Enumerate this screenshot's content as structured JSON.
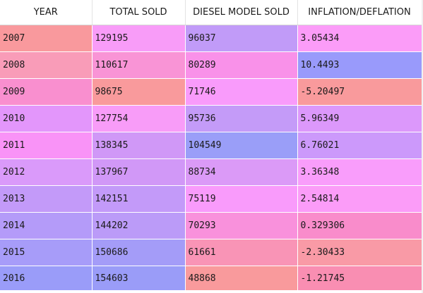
{
  "table": {
    "columns": [
      "YEAR",
      "TOTAL SOLD",
      "DIESEL MODEL SOLD",
      "INFLATION/DEFLATION"
    ],
    "rows": [
      {
        "cells": [
          "2007",
          "129195",
          "96037",
          "3.05434"
        ],
        "colors": [
          "#f9999d",
          "#f89cf8",
          "#c19bf8",
          "#fb9cf8"
        ]
      },
      {
        "cells": [
          "2008",
          "110617",
          "80289",
          "10.4493"
        ],
        "colors": [
          "#f99cb8",
          "#f994d6",
          "#f991e9",
          "#999afb"
        ]
      },
      {
        "cells": [
          "2009",
          "98675",
          "71746",
          "-5.20497"
        ],
        "colors": [
          "#f98fcf",
          "#f99a9c",
          "#f99bfb",
          "#f99a9c"
        ]
      },
      {
        "cells": [
          "2010",
          "127754",
          "95736",
          "5.96349"
        ],
        "colors": [
          "#e396fb",
          "#f89cf8",
          "#c49bf8",
          "#dc98fb"
        ]
      },
      {
        "cells": [
          "2011",
          "138345",
          "104549",
          "6.76021"
        ],
        "colors": [
          "#f993f7",
          "#d098f7",
          "#9a9ef8",
          "#cc99fb"
        ]
      },
      {
        "cells": [
          "2012",
          "137967",
          "88734",
          "3.36348"
        ],
        "colors": [
          "#da9afa",
          "#d198f7",
          "#db9af7",
          "#f99dfb"
        ]
      },
      {
        "cells": [
          "2013",
          "142151",
          "75119",
          "2.54814"
        ],
        "colors": [
          "#c39af9",
          "#c39af9",
          "#f99bfb",
          "#fb9cf8"
        ]
      },
      {
        "cells": [
          "2014",
          "144202",
          "70293",
          "0.329306"
        ],
        "colors": [
          "#b49bf9",
          "#bb9bf8",
          "#f991dc",
          "#f98ccb"
        ]
      },
      {
        "cells": [
          "2015",
          "150686",
          "61661",
          "-2.30433"
        ],
        "colors": [
          "#a79cf9",
          "#a49cf8",
          "#f994b6",
          "#f99aa6"
        ]
      },
      {
        "cells": [
          "2016",
          "154603",
          "48868",
          "-1.21745"
        ],
        "colors": [
          "#9a9cf9",
          "#9a9cf8",
          "#f99a9c",
          "#f98eb2"
        ]
      }
    ]
  }
}
